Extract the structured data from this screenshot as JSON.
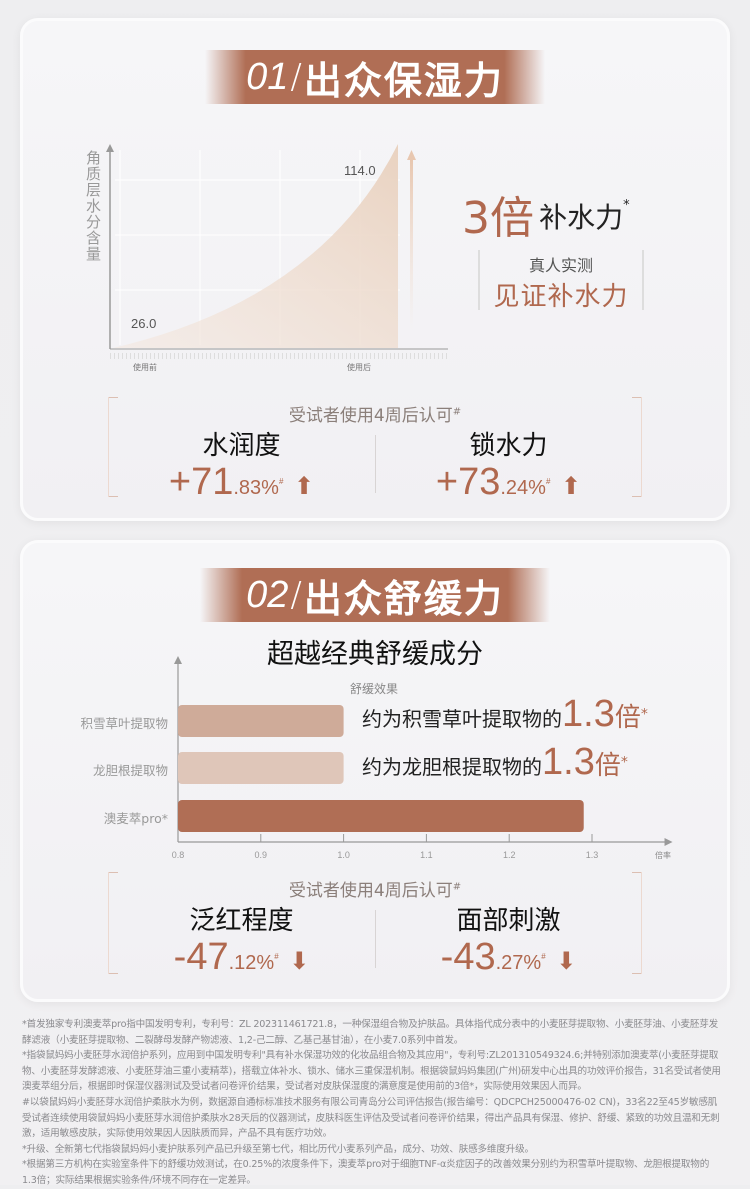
{
  "section1": {
    "number": "01",
    "title": "出众保湿力",
    "chart": {
      "ylabel": "角质层水分含量",
      "before_label": "使用前",
      "after_label": "使用后",
      "before_value": "26.0",
      "after_value": "114.0"
    },
    "claim": {
      "multiplier": "3倍",
      "text": "补水力",
      "mark": "*"
    },
    "badge": {
      "line1": "真人实测",
      "line2": "见证补水力"
    },
    "approval": {
      "text": "受试者使用4周后认可",
      "mark": "#"
    },
    "stats": [
      {
        "label": "水润度",
        "sign": "+",
        "int": "71",
        "dec": ".83%",
        "mark": "#",
        "direction": "up"
      },
      {
        "label": "锁水力",
        "sign": "+",
        "int": "73",
        "dec": ".24%",
        "mark": "#",
        "direction": "up"
      }
    ]
  },
  "section2": {
    "number": "02",
    "title": "出众舒缓力",
    "subtitle": "超越经典舒缓成分",
    "chart_data": {
      "type": "bar",
      "orientation": "horizontal",
      "title": "舒缓效果",
      "xlabel": "倍率",
      "categories": [
        "积雪草叶提取物",
        "龙胆根提取物",
        "澳麦萃pro*"
      ],
      "values": [
        1.0,
        1.0,
        1.29
      ],
      "xlim": [
        0.8,
        1.35
      ],
      "xticks": [
        "0.8",
        "0.9",
        "1.0",
        "1.1",
        "1.2",
        "1.3"
      ],
      "colors": [
        "#cfab99",
        "#dfc6b9",
        "#b06e55"
      ]
    },
    "comparisons": [
      {
        "text": "约为积雪草叶提取物的",
        "value": "1.3",
        "unit": "倍",
        "mark": "*"
      },
      {
        "text": "约为龙胆根提取物的",
        "value": "1.3",
        "unit": "倍",
        "mark": "*"
      }
    ],
    "approval": {
      "text": "受试者使用4周后认可",
      "mark": "#"
    },
    "stats": [
      {
        "label": "泛红程度",
        "sign": "-",
        "int": "47",
        "dec": ".12%",
        "mark": "#",
        "direction": "down"
      },
      {
        "label": "面部刺激",
        "sign": "-",
        "int": "43",
        "dec": ".27%",
        "mark": "#",
        "direction": "down"
      }
    ]
  },
  "footnotes": [
    "*首发独家专利澳麦萃pro指中国发明专利，专利号：ZL 202311461721.8，一种保湿组合物及护肤品。具体指代成分表中的小麦胚芽提取物、小麦胚芽油、小麦胚芽发酵滤液（小麦胚芽提取物、二裂酵母发酵产物滤液、1,2-己二醇、乙基己基甘油），在小麦7.0系列中首发。",
    "*指袋鼠妈妈小麦胚芽水润倍护系列，应用到中国发明专利\"具有补水保湿功效的化妆品组合物及其应用\"，专利号:ZL201310549324.6;并特别添加澳麦萃(小麦胚芽提取物、小麦胚芽发酵滤液、小麦胚芽油三重小麦精萃)，搭载立体补水、锁水、储水三重保湿机制。根据袋鼠妈妈集团(广州)研发中心出具的功效评价报告，31名受试者使用澳麦萃组分后，根据即时保湿仪器测试及受试者问卷评价结果，受试者对皮肤保湿度的满意度是使用前的3倍*，实际使用效果因人而异。",
    "#以袋鼠妈妈小麦胚芽水润倍护柔肤水为例，数据源自通标标准技术服务有限公司青岛分公司评估报告(报告编号：QDCPCH25000476-02 CN)，33名22至45岁敏感肌受试者连续使用袋鼠妈妈小麦胚芽水润倍护柔肤水28天后的仪器测试，皮肤科医生评估及受试者问卷评价结果，得出产品具有保湿、修护、舒缓、紧致的功效且温和无刺激，适用敏感皮肤，实际使用效果因人因肤质而异，产品不具有医疗功效。",
    "*升级、全新第七代指袋鼠妈妈小麦护肤系列产品已升级至第七代，相比历代小麦系列产品，成分、功效、肤感多维度升级。",
    "*根据第三方机构在实验室条件下的舒缓功效测试，在0.25%的浓度条件下，澳麦萃pro对于细胞TNF-α炎症因子的改善效果分别约为积雪草叶提取物、龙胆根提取物的1.3倍；实际结果根据实验条件/环境不同存在一定差异。"
  ],
  "colors": {
    "accent": "#b06e55",
    "accent_text": "#b0684e"
  }
}
